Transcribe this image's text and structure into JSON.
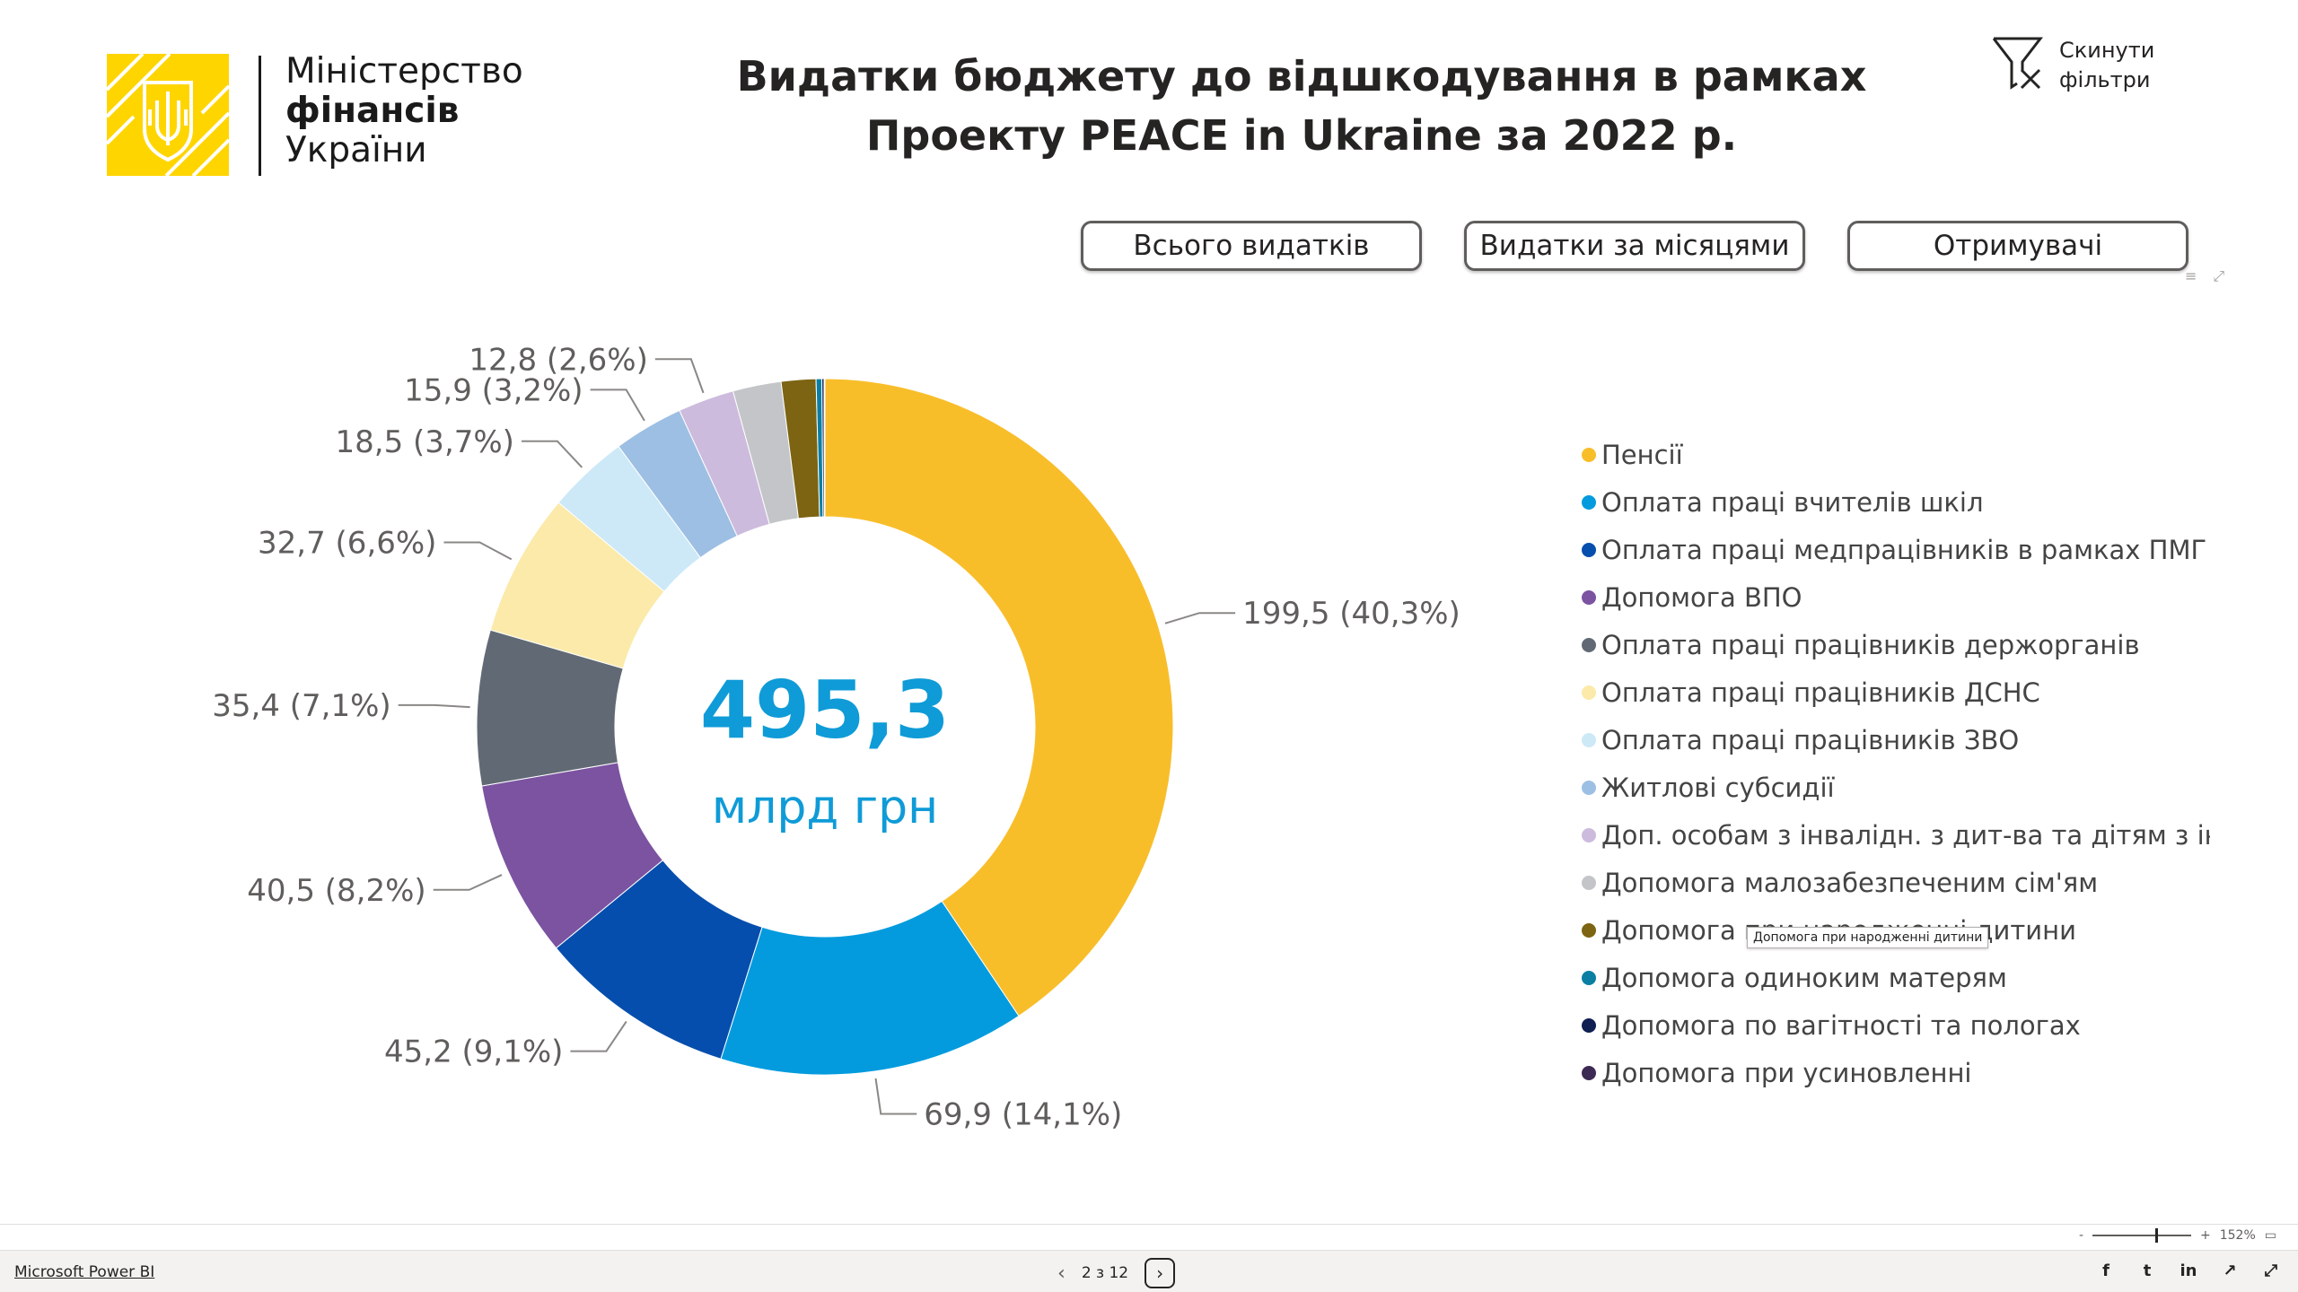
{
  "header": {
    "ministry_line1": "Міністерство",
    "ministry_line2": "фінансів",
    "ministry_line3": "України",
    "title_line1": "Видатки бюджету до відшкодування в рамках",
    "title_line2": "Проекту PEACE in Ukraine за 2022 р.",
    "reset_label": "Скинути фільтри"
  },
  "nav": {
    "total_label": "Всього видатків",
    "monthly_label": "Видатки за місяцями",
    "recipients_label": "Отримувачі"
  },
  "center": {
    "value": "495,3",
    "unit": "млрд грн"
  },
  "tooltip": "Допомога при народженні дитини",
  "chart_data": {
    "type": "pie",
    "donut": true,
    "total": 495.3,
    "legend_position": "right",
    "series": [
      {
        "name": "Пенсії",
        "value": 199.5,
        "label": "199,5 (40,3%)",
        "color": "#f8be2a"
      },
      {
        "name": "Оплата праці вчителів шкіл",
        "value": 69.9,
        "label": "69,9 (14,1%)",
        "color": "#039bde"
      },
      {
        "name": "Оплата праці медпрацівників в рамках ПМГ",
        "value": 45.2,
        "label": "45,2 (9,1%)",
        "color": "#064ead"
      },
      {
        "name": "Допомога ВПО",
        "value": 40.5,
        "label": "40,5 (8,2%)",
        "color": "#7b53a1"
      },
      {
        "name": "Оплата праці працівників держорганів",
        "value": 35.4,
        "label": "35,4 (7,1%)",
        "color": "#616a74"
      },
      {
        "name": "Оплата праці працівників ДСНС",
        "value": 32.7,
        "label": "32,7 (6,6%)",
        "color": "#fceaaa"
      },
      {
        "name": "Оплата праці працівників ЗВО",
        "value": 18.5,
        "label": "18,5 (3,7%)",
        "color": "#cde9f7"
      },
      {
        "name": "Житлові субсидії",
        "value": 15.9,
        "label": "15,9 (3,2%)",
        "color": "#9dbfe3"
      },
      {
        "name": "Доп. особам з інвалідн. з дит-ва та дітям з інва...",
        "value": 12.8,
        "label": "12,8 (2,6%)",
        "color": "#cdbbdd"
      },
      {
        "name": "Допомога малозабезпеченим сім'ям",
        "value": 11.0,
        "label": "",
        "color": "#c3c5c8"
      },
      {
        "name": "Допомога при народженні дитини",
        "value": 7.9,
        "label": "",
        "color": "#7c6412"
      },
      {
        "name": "Допомога одиноким матерям",
        "value": 1.3,
        "label": "",
        "color": "#0a7fa3"
      },
      {
        "name": "Допомога по вагітності та пологах",
        "value": 0.5,
        "label": "",
        "color": "#0f1f52"
      },
      {
        "name": "Допомога при усиновленні",
        "value": 0.2,
        "label": "",
        "color": "#3d2a54"
      }
    ]
  },
  "zoom": {
    "minus": "-",
    "plus": "+",
    "value": "152%"
  },
  "footer": {
    "brand": "Microsoft Power BI",
    "page_indicator": "2 з 12"
  },
  "icons": {
    "reset": "filter-clear-icon",
    "prev": "chevron-left-icon",
    "next": "chevron-right-icon",
    "share": [
      "facebook-icon",
      "twitter-icon",
      "linkedin-icon",
      "share-icon",
      "fullscreen-icon"
    ]
  }
}
